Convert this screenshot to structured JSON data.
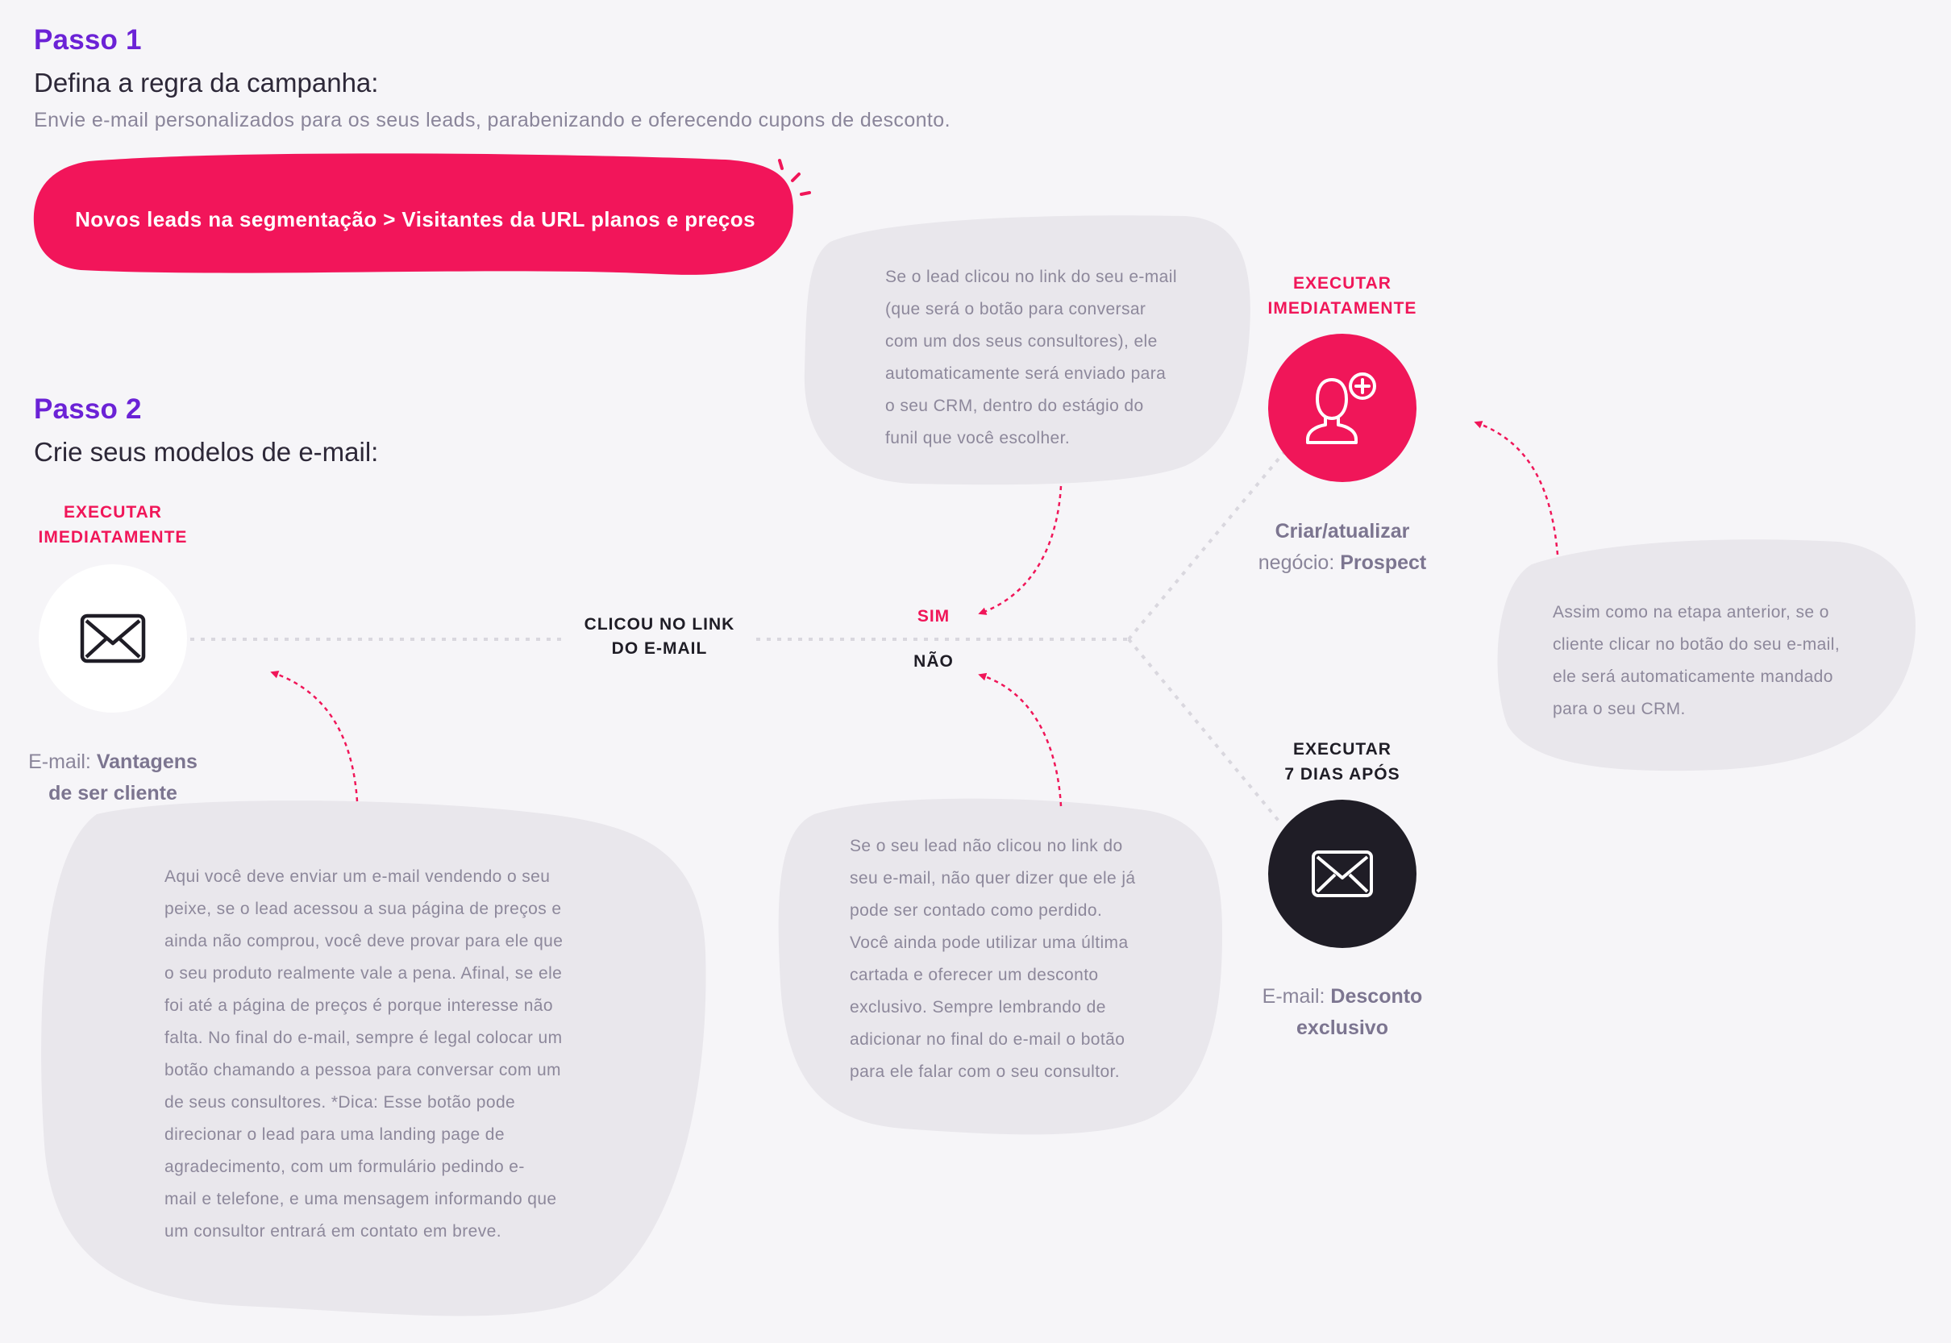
{
  "colors": {
    "accent_pink": "#f01659",
    "accent_purple": "#6b22d6",
    "dark_node": "#1f1d26",
    "bubble": "#e9e7ec",
    "background": "#f6f5f8"
  },
  "step1": {
    "title": "Passo 1",
    "subtitle": "Defina a regra da campanha:",
    "description": "Envie e-mail personalizados para os seus leads, parabenizando e oferecendo cupons de desconto.",
    "trigger": "Novos leads na segmentação > Visitantes da URL planos e preços"
  },
  "step2": {
    "title": "Passo 2",
    "subtitle": "Crie seus modelos de e-mail:"
  },
  "node_email_start": {
    "exec_line1": "EXECUTAR",
    "exec_line2": "IMEDIATAMENTE",
    "icon": "envelope-icon",
    "label_prefix": "E-mail:",
    "label_bold1": "Vantagens",
    "label_bold2": "de ser cliente"
  },
  "condition": {
    "line1": "CLICOU NO LINK",
    "line2": "DO E-MAIL",
    "yes": "SIM",
    "no": "NÃO"
  },
  "node_deal": {
    "exec_line1": "EXECUTAR",
    "exec_line2": "IMEDIATAMENTE",
    "icon": "add-user-icon",
    "label_line1": "Criar/atualizar",
    "label_prefix": "negócio:",
    "label_bold": "Prospect"
  },
  "node_email_discount": {
    "exec_line1": "EXECUTAR",
    "exec_line2": "7 DIAS APÓS",
    "icon": "envelope-icon",
    "label_prefix": "E-mail:",
    "label_bold1": "Desconto",
    "label_bold2": "exclusivo"
  },
  "notes": {
    "clicked": [
      "Se o lead clicou no link do seu e-mail",
      "(que será o botão para conversar",
      "com um dos seus consultores), ele",
      "automaticamente será enviado para",
      "o seu CRM, dentro do estágio do",
      "funil que você escolher."
    ],
    "crm": [
      "Assim como na etapa anterior, se o",
      "cliente clicar no botão do seu e-mail,",
      "ele será automaticamente mandado",
      "para o seu CRM."
    ],
    "not_clicked": [
      "Se o seu lead não clicou no link do",
      "seu e-mail, não quer dizer que ele já",
      "pode ser contado como perdido.",
      "Você ainda pode utilizar uma última",
      "cartada e oferecer um desconto",
      "exclusivo. Sempre lembrando de",
      "adicionar no final do e-mail o botão",
      "para ele falar com o seu consultor."
    ],
    "first_email": [
      "Aqui você deve enviar um e-mail vendendo o seu",
      "peixe, se o lead acessou a sua página de preços e",
      "ainda não comprou, você deve provar para ele que",
      "o seu produto realmente vale a pena. Afinal, se ele",
      "foi até a página de preços é porque interesse não",
      "falta. No final do e-mail, sempre é legal colocar um",
      "botão chamando a pessoa para conversar com um",
      "de seus consultores. *Dica: Esse botão pode",
      "direcionar o lead para uma landing page de",
      "agradecimento, com um formulário pedindo  e-",
      "mail e telefone, e uma mensagem informando que",
      "um consultor entrará em contato em breve."
    ]
  }
}
